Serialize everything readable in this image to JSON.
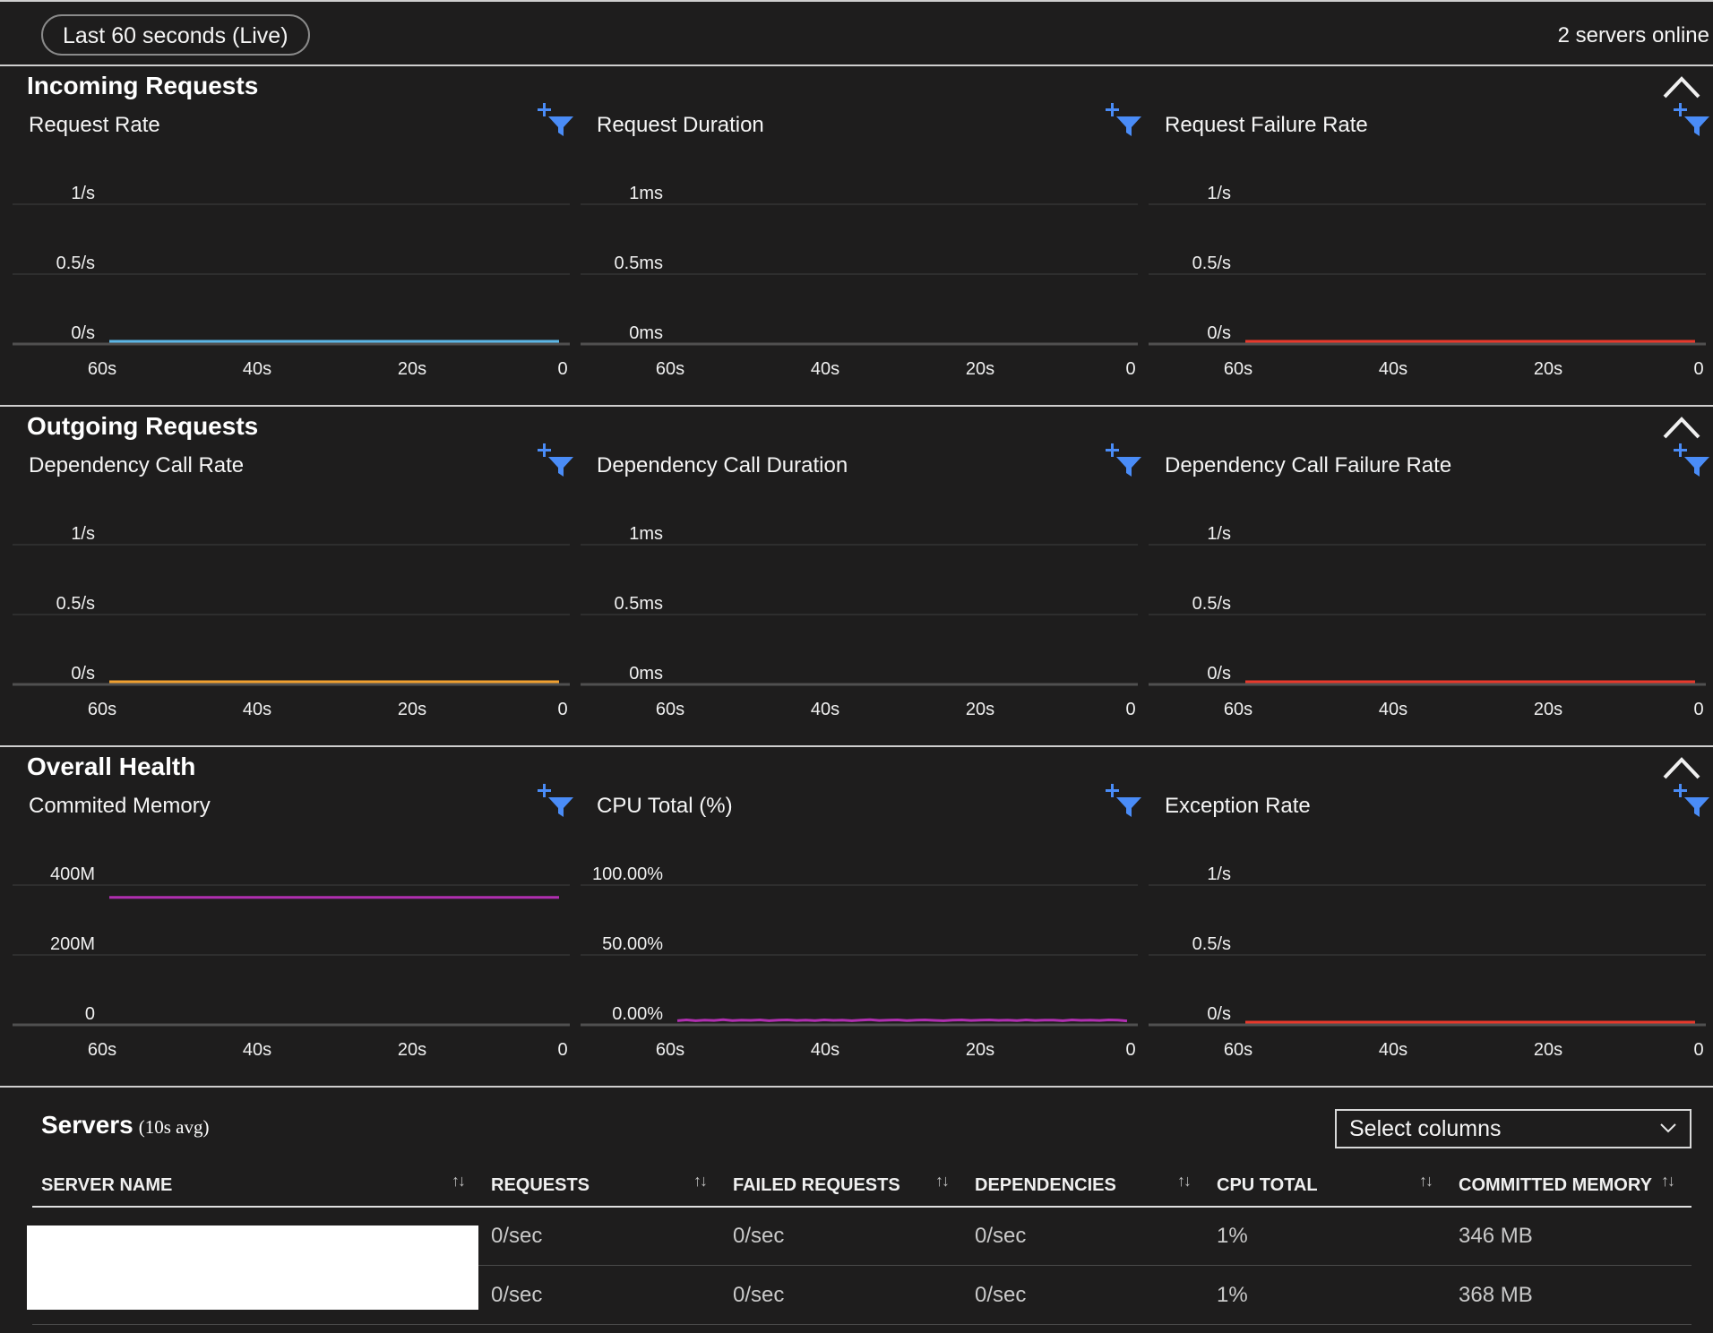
{
  "header": {
    "time_range_label": "Last 60 seconds (Live)",
    "servers_online": "2 servers online"
  },
  "x_axis_labels": [
    "60s",
    "40s",
    "20s",
    "0"
  ],
  "sections": [
    {
      "title": "Incoming Requests",
      "panels": [
        {
          "title": "Request Rate",
          "y_labels": [
            "1/s",
            "0.5/s",
            "0/s"
          ],
          "series_color": "#5cb6e6",
          "values": [
            0,
            0
          ],
          "ymax": 1
        },
        {
          "title": "Request Duration",
          "y_labels": [
            "1ms",
            "0.5ms",
            "0ms"
          ],
          "series_color": "",
          "values": [],
          "ymax": 1
        },
        {
          "title": "Request Failure Rate",
          "y_labels": [
            "1/s",
            "0.5/s",
            "0/s"
          ],
          "series_color": "#e8392c",
          "values": [
            0,
            0
          ],
          "ymax": 1
        }
      ]
    },
    {
      "title": "Outgoing Requests",
      "panels": [
        {
          "title": "Dependency Call Rate",
          "y_labels": [
            "1/s",
            "0.5/s",
            "0/s"
          ],
          "series_color": "#f0a030",
          "values": [
            0,
            0
          ],
          "ymax": 1
        },
        {
          "title": "Dependency Call Duration",
          "y_labels": [
            "1ms",
            "0.5ms",
            "0ms"
          ],
          "series_color": "",
          "values": [],
          "ymax": 1
        },
        {
          "title": "Dependency Call Failure Rate",
          "y_labels": [
            "1/s",
            "0.5/s",
            "0/s"
          ],
          "series_color": "#e8392c",
          "values": [
            0,
            0
          ],
          "ymax": 1
        }
      ]
    },
    {
      "title": "Overall Health",
      "panels": [
        {
          "title": "Commited Memory",
          "y_labels": [
            "400M",
            "200M",
            "0"
          ],
          "series_color": "#b02fb0",
          "values": [
            357,
            357
          ],
          "ymax": 400
        },
        {
          "title": "CPU Total (%)",
          "y_labels": [
            "100.00%",
            "50.00%",
            "0.00%"
          ],
          "series_color": "#b02fb0",
          "values": [
            1.0,
            1.6,
            1.0,
            1.5,
            1.2,
            1.7,
            1.1,
            1.5,
            1.3,
            1.6,
            1.0,
            1.4,
            1.6,
            1.2,
            1.5,
            1.1,
            1.6,
            1.3,
            1.5,
            1.0,
            1.4,
            1.7,
            1.2,
            1.5,
            1.6,
            1.1,
            1.4,
            1.6,
            1.3,
            1.0,
            1.5,
            1.6,
            1.2,
            1.4,
            1.6,
            1.3,
            1.5,
            1.1,
            1.6,
            1.2,
            1.5,
            1.4,
            1.0,
            1.6,
            1.3,
            1.5,
            1.2,
            1.6,
            1.4,
            0.9
          ],
          "ymax": 100
        },
        {
          "title": "Exception Rate",
          "y_labels": [
            "1/s",
            "0.5/s",
            "0/s"
          ],
          "series_color": "#e8392c",
          "values": [
            0,
            0
          ],
          "ymax": 1
        }
      ]
    }
  ],
  "servers": {
    "title": "Servers",
    "subtitle": "(10s avg)",
    "select_columns_label": "Select columns",
    "columns": [
      "SERVER NAME",
      "REQUESTS",
      "FAILED REQUESTS",
      "DEPENDENCIES",
      "CPU TOTAL",
      "COMMITTED MEMORY"
    ],
    "rows": [
      {
        "requests": "0/sec",
        "failed": "0/sec",
        "dependencies": "0/sec",
        "cpu": "1%",
        "memory": "346 MB"
      },
      {
        "requests": "0/sec",
        "failed": "0/sec",
        "dependencies": "0/sec",
        "cpu": "1%",
        "memory": "368 MB"
      }
    ]
  },
  "colors": {
    "filter_icon": "#4a8cf7",
    "grid": "#3e3e3e",
    "axis": "#505050"
  }
}
